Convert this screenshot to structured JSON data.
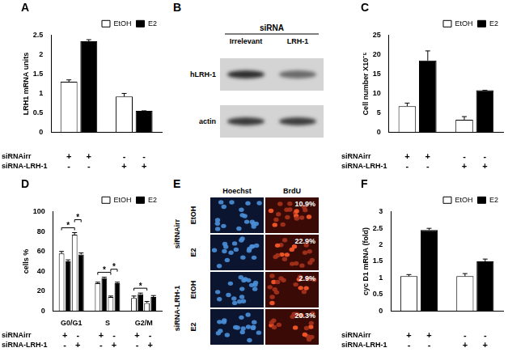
{
  "chart_data": [
    {
      "type": "bar",
      "title": "A",
      "y_label": "LRH1 mRNA units",
      "categories": [
        null,
        null
      ],
      "series": [
        {
          "name": "EtOH",
          "color": "#ffffff",
          "values": [
            1.3,
            0.92
          ],
          "errors": [
            0.05,
            0.08
          ]
        },
        {
          "name": "E2",
          "color": "#000000",
          "values": [
            2.35,
            0.55
          ],
          "errors": [
            0.04,
            0
          ]
        }
      ],
      "ylim": [
        0,
        2.5
      ],
      "yticks": [
        0,
        0.5,
        1,
        1.5,
        2,
        2.5
      ],
      "grid": false,
      "legend": "upper right",
      "conditions": [
        {
          "label": "siRNAirr",
          "signs": [
            "+",
            "+",
            "-",
            "-"
          ]
        },
        {
          "label": "siRNA-LRH-1",
          "signs": [
            "-",
            "-",
            "+",
            "+"
          ]
        }
      ]
    },
    {
      "type": "bar",
      "title": "C",
      "y_label": "Cell number X10⁻⁵",
      "categories": [
        null,
        null
      ],
      "series": [
        {
          "name": "EtOH",
          "color": "#ffffff",
          "values": [
            6.7,
            3.2
          ],
          "errors": [
            0.8,
            0.8
          ]
        },
        {
          "name": "E2",
          "color": "#000000",
          "values": [
            18.5,
            10.8
          ],
          "errors": [
            2.5,
            0
          ]
        }
      ],
      "ylim": [
        0,
        25
      ],
      "yticks": [
        0,
        5,
        10,
        15,
        20,
        25
      ],
      "grid": false,
      "legend": "upper right",
      "conditions": [
        {
          "label": "siRNAirr",
          "signs": [
            "+",
            "+",
            "-",
            "-"
          ]
        },
        {
          "label": "siRNA-LRH-1",
          "signs": [
            "-",
            "-",
            "+",
            "+"
          ]
        }
      ]
    },
    {
      "type": "bar",
      "title": "D",
      "y_label": "cells %",
      "categories": [
        "G0/G1",
        "S",
        "G2/M"
      ],
      "series": [
        {
          "name": "EtOH",
          "color": "#ffffff",
          "values": [
            58,
            28,
            13
          ],
          "errors": [
            2,
            1,
            2
          ]
        },
        {
          "name": "E2",
          "color": "#000000",
          "values": [
            50,
            33,
            17
          ],
          "errors": [
            1.5,
            1,
            1
          ]
        },
        {
          "name": "EtOH",
          "color": "#ffffff",
          "values": [
            77,
            14,
            8
          ],
          "errors": [
            2,
            1,
            1.5
          ]
        },
        {
          "name": "E2",
          "color": "#000000",
          "values": [
            57,
            28,
            14
          ],
          "errors": [
            1.5,
            1,
            1.5
          ]
        }
      ],
      "ylim": [
        0,
        100
      ],
      "yticks": [
        0,
        20,
        40,
        60,
        80,
        100
      ],
      "grid": false,
      "legend": "upper right",
      "conditions": [
        {
          "label": "siRNAirr",
          "signs": [
            "+",
            "-",
            "+",
            "-",
            "+",
            "-"
          ]
        },
        {
          "label": "siRNA-LRH-1",
          "signs": [
            "-",
            "+",
            "-",
            "+",
            "-",
            "+"
          ]
        }
      ],
      "significance": [
        {
          "category": "G0/G1",
          "between": [
            0,
            2
          ],
          "text": "*"
        },
        {
          "category": "G0/G1",
          "between": [
            2,
            3
          ],
          "text": "*"
        },
        {
          "category": "S",
          "between": [
            0,
            2
          ],
          "text": "*"
        },
        {
          "category": "S",
          "between": [
            2,
            3
          ],
          "text": "*"
        },
        {
          "category": "G2/M",
          "between": [
            0,
            2
          ],
          "text": "*"
        }
      ]
    },
    {
      "type": "bar",
      "title": "F",
      "y_label": "cyc D1 mRNA (fold)",
      "categories": [
        null,
        null
      ],
      "series": [
        {
          "name": "EtOH",
          "color": "#ffffff",
          "values": [
            1.05,
            1.05
          ],
          "errors": [
            0.05,
            0.08
          ]
        },
        {
          "name": "E2",
          "color": "#000000",
          "values": [
            2.45,
            1.5
          ],
          "errors": [
            0.05,
            0.07
          ]
        }
      ],
      "ylim": [
        0,
        3
      ],
      "yticks": [
        0,
        0.5,
        1,
        1.5,
        2,
        2.5,
        3
      ],
      "grid": false,
      "legend": "upper right",
      "conditions": [
        {
          "label": "siRNAirr",
          "signs": [
            "+",
            "+",
            "-",
            "-"
          ]
        },
        {
          "label": "siRNA-LRH-1",
          "signs": [
            "-",
            "-",
            "+",
            "+"
          ]
        }
      ]
    }
  ],
  "blot": {
    "panel_label": "B",
    "header": "siRNA",
    "columns": [
      "Irrelevant",
      "LRH-1"
    ],
    "rows": [
      "hLRH-1",
      "actin"
    ]
  },
  "microscopy": {
    "panel_label": "E",
    "columns": [
      "Hoechst",
      "BrdU"
    ],
    "groups": [
      {
        "label": "siRNAirr",
        "rows": [
          {
            "label": "EtOH",
            "brdu": "10.9%"
          },
          {
            "label": "E2",
            "brdu": "22.9%"
          }
        ]
      },
      {
        "label": "siRNA-LRH-1",
        "rows": [
          {
            "label": "EtOH",
            "brdu": "2.9%"
          },
          {
            "label": "E2",
            "brdu": "20.3%"
          }
        ]
      }
    ]
  }
}
